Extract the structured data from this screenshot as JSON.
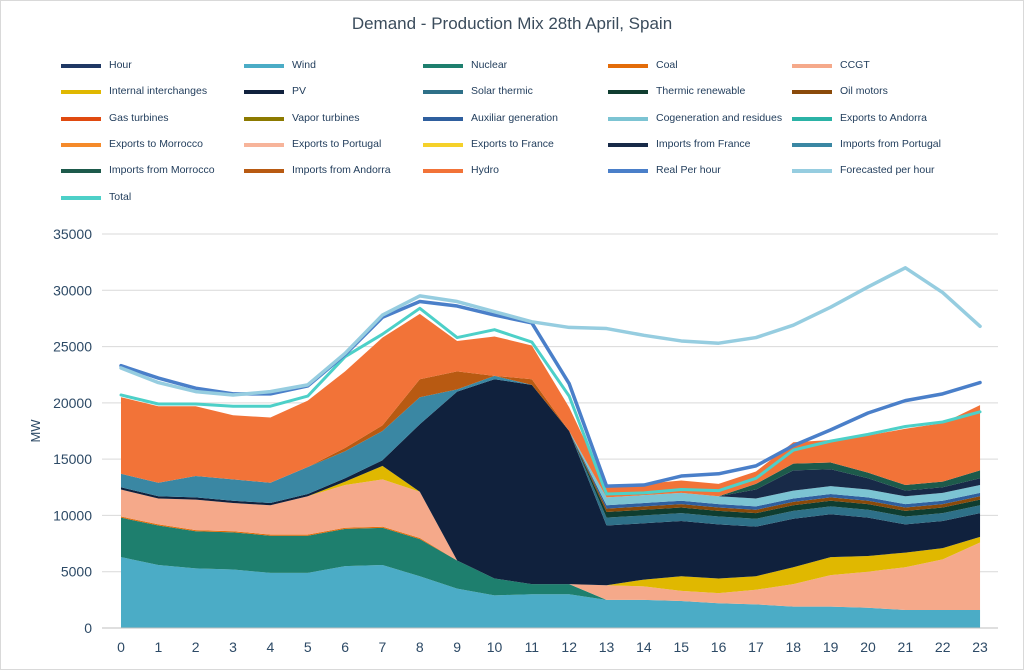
{
  "chart_data": {
    "type": "area",
    "title": "Demand - Production Mix 28th April, Spain",
    "xlabel": "",
    "ylabel": "MW",
    "ylim": [
      0,
      35000
    ],
    "yticks": [
      0,
      5000,
      10000,
      15000,
      20000,
      25000,
      30000,
      35000
    ],
    "x": [
      0,
      1,
      2,
      3,
      4,
      5,
      6,
      7,
      8,
      9,
      10,
      11,
      12,
      13,
      14,
      15,
      16,
      17,
      18,
      19,
      20,
      21,
      22,
      23
    ],
    "grid": true,
    "legend_position": "top",
    "legend": [
      {
        "name": "Hour",
        "color": "#1f3864"
      },
      {
        "name": "Wind",
        "color": "#4bacc6"
      },
      {
        "name": "Nuclear",
        "color": "#1e7f6e"
      },
      {
        "name": "Coal",
        "color": "#e36c09"
      },
      {
        "name": "CCGT",
        "color": "#f5a98a"
      },
      {
        "name": "Internal interchanges",
        "color": "#e0b800"
      },
      {
        "name": "PV",
        "color": "#10213d"
      },
      {
        "name": "Solar thermic",
        "color": "#2e7088"
      },
      {
        "name": "Thermic renewable",
        "color": "#0f3d30"
      },
      {
        "name": "Oil motors",
        "color": "#8a4a0a"
      },
      {
        "name": "Gas turbines",
        "color": "#e04a10"
      },
      {
        "name": "Vapor turbines",
        "color": "#8c7a00"
      },
      {
        "name": "Auxiliar generation",
        "color": "#2f5f9e"
      },
      {
        "name": "Cogeneration and residues",
        "color": "#7cc4d3"
      },
      {
        "name": "Exports to Andorra",
        "color": "#2bb3a6"
      },
      {
        "name": "Exports to Morrocco",
        "color": "#f58a2a"
      },
      {
        "name": "Exports to Portugal",
        "color": "#f7b49a"
      },
      {
        "name": "Exports to France",
        "color": "#f5d12a"
      },
      {
        "name": "Imports from France",
        "color": "#182a48"
      },
      {
        "name": "Imports from Portugal",
        "color": "#3a87a3"
      },
      {
        "name": "Imports from Morrocco",
        "color": "#1d5a4b"
      },
      {
        "name": "Imports from Andorra",
        "color": "#b85a12"
      },
      {
        "name": "Hydro",
        "color": "#f27338"
      },
      {
        "name": "Real Per hour",
        "color": "#4a7fc9"
      },
      {
        "name": "Forecasted per hour",
        "color": "#96cde0"
      },
      {
        "name": "Total",
        "color": "#4dd0c8"
      }
    ],
    "areas": [
      {
        "name": "Wind",
        "color": "#4bacc6",
        "values": [
          6300,
          5600,
          5300,
          5200,
          4900,
          4900,
          5500,
          5600,
          4600,
          3500,
          2900,
          3000,
          3000,
          2500,
          2500,
          2400,
          2200,
          2100,
          1900,
          1900,
          1800,
          1600,
          1600,
          1600
        ]
      },
      {
        "name": "Nuclear",
        "color": "#1e7f6e",
        "values": [
          3500,
          3500,
          3300,
          3300,
          3300,
          3300,
          3300,
          3300,
          3300,
          2500,
          1500,
          900,
          900,
          0,
          0,
          0,
          0,
          0,
          0,
          0,
          0,
          0,
          0,
          0
        ]
      },
      {
        "name": "Coal",
        "color": "#e36c09",
        "values": [
          100,
          100,
          100,
          100,
          100,
          100,
          100,
          100,
          100,
          0,
          0,
          0,
          0,
          0,
          0,
          0,
          0,
          0,
          0,
          0,
          0,
          0,
          0,
          0
        ]
      },
      {
        "name": "CCGT",
        "color": "#f5a98a",
        "values": [
          2400,
          2300,
          2700,
          2500,
          2600,
          3400,
          3800,
          4200,
          4100,
          0,
          0,
          0,
          0,
          1300,
          1200,
          900,
          900,
          1300,
          2000,
          2800,
          3200,
          3800,
          4500,
          6000
        ]
      },
      {
        "name": "Internal interchanges",
        "color": "#e0b800",
        "values": [
          0,
          0,
          0,
          0,
          0,
          0,
          300,
          1200,
          0,
          0,
          0,
          0,
          0,
          0,
          600,
          1300,
          1300,
          1200,
          1500,
          1600,
          1400,
          1300,
          1000,
          500
        ]
      },
      {
        "name": "PV",
        "color": "#10213d",
        "values": [
          200,
          200,
          200,
          200,
          200,
          200,
          300,
          500,
          6000,
          15000,
          17700,
          17700,
          13600,
          5300,
          5000,
          4900,
          4800,
          4400,
          4300,
          3800,
          3400,
          2500,
          2400,
          2100
        ]
      },
      {
        "name": "Solar thermic",
        "color": "#2e7088",
        "values": [
          0,
          0,
          0,
          0,
          0,
          0,
          0,
          0,
          0,
          0,
          0,
          0,
          0,
          700,
          700,
          700,
          700,
          700,
          700,
          700,
          700,
          700,
          700,
          700
        ]
      },
      {
        "name": "Thermic renewable",
        "color": "#0f3d30",
        "values": [
          0,
          0,
          0,
          0,
          0,
          0,
          0,
          0,
          0,
          0,
          0,
          0,
          0,
          500,
          500,
          500,
          500,
          500,
          500,
          500,
          500,
          500,
          500,
          500
        ]
      },
      {
        "name": "Oil motors",
        "color": "#8a4a0a",
        "values": [
          0,
          0,
          0,
          0,
          0,
          0,
          0,
          0,
          0,
          0,
          0,
          0,
          0,
          300,
          300,
          300,
          300,
          300,
          300,
          300,
          300,
          300,
          300,
          300
        ]
      },
      {
        "name": "Auxiliar generation",
        "color": "#2f5f9e",
        "values": [
          0,
          0,
          0,
          0,
          0,
          0,
          0,
          0,
          0,
          0,
          0,
          0,
          0,
          300,
          300,
          300,
          300,
          300,
          300,
          300,
          300,
          300,
          300,
          300
        ]
      },
      {
        "name": "Cogeneration and residues",
        "color": "#7cc4d3",
        "values": [
          0,
          0,
          0,
          0,
          0,
          0,
          0,
          0,
          0,
          0,
          0,
          0,
          0,
          700,
          700,
          700,
          700,
          700,
          700,
          700,
          700,
          700,
          700,
          700
        ]
      },
      {
        "name": "Imports from France",
        "color": "#182a48",
        "values": [
          0,
          0,
          0,
          0,
          0,
          0,
          0,
          0,
          0,
          0,
          0,
          0,
          0,
          0,
          0,
          0,
          0,
          800,
          1800,
          1500,
          1000,
          500,
          500,
          600
        ]
      },
      {
        "name": "Imports from Portugal",
        "color": "#3a87a3",
        "values": [
          1200,
          1200,
          1900,
          1900,
          1800,
          2400,
          2400,
          2600,
          2400,
          200,
          300,
          0,
          0,
          0,
          0,
          0,
          0,
          0,
          0,
          0,
          0,
          0,
          0,
          0
        ]
      },
      {
        "name": "Imports from Morrocco",
        "color": "#1d5a4b",
        "values": [
          0,
          0,
          0,
          0,
          0,
          0,
          0,
          0,
          0,
          0,
          0,
          0,
          0,
          0,
          0,
          0,
          0,
          500,
          600,
          600,
          500,
          500,
          500,
          700
        ]
      },
      {
        "name": "Imports from Andorra",
        "color": "#b85a12",
        "values": [
          0,
          0,
          0,
          0,
          0,
          0,
          300,
          500,
          1600,
          1600,
          0,
          500,
          0,
          0,
          0,
          0,
          0,
          0,
          0,
          0,
          0,
          0,
          0,
          0
        ]
      },
      {
        "name": "Hydro",
        "color": "#f27338",
        "values": [
          6800,
          6800,
          6200,
          5700,
          5800,
          5900,
          6800,
          7800,
          5800,
          2700,
          3500,
          3000,
          2100,
          1000,
          1000,
          1100,
          1100,
          1100,
          1900,
          2000,
          3300,
          5000,
          5200,
          5800
        ]
      }
    ],
    "lines": [
      {
        "name": "Total",
        "color": "#4dd0c8",
        "width": 3,
        "values": [
          20700,
          19900,
          19900,
          19700,
          19700,
          20600,
          24100,
          26100,
          28400,
          25800,
          26500,
          25400,
          20600,
          11900,
          12000,
          12300,
          12200,
          13300,
          15800,
          16600,
          17200,
          17900,
          18300,
          19200
        ]
      },
      {
        "name": "Real Per hour",
        "color": "#4a7fc9",
        "width": 3.5,
        "values": [
          23300,
          22200,
          21300,
          20800,
          20800,
          21500,
          24300,
          27600,
          29000,
          28600,
          27800,
          27100,
          21700,
          12600,
          12700,
          13500,
          13700,
          14400,
          16200,
          17600,
          19100,
          20200,
          20800,
          21800
        ]
      },
      {
        "name": "Forecasted per hour",
        "color": "#96cde0",
        "width": 3.5,
        "values": [
          23100,
          21800,
          21000,
          20700,
          21000,
          21600,
          24400,
          27800,
          29500,
          29000,
          28100,
          27200,
          26700,
          26600,
          26000,
          25500,
          25300,
          25800,
          26900,
          28500,
          30300,
          32000,
          29800,
          26800
        ]
      }
    ]
  }
}
